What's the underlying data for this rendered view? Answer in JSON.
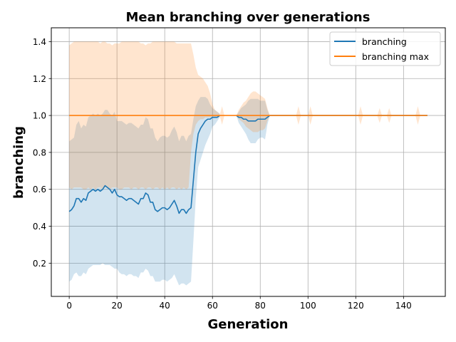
{
  "chart_data": {
    "type": "line",
    "title": "Mean branching over generations",
    "xlabel": "Generation",
    "ylabel": "branching",
    "xlim": [
      -7.5,
      157.5
    ],
    "ylim": [
      0.02,
      1.475
    ],
    "xticks": [
      0,
      20,
      40,
      60,
      80,
      100,
      120,
      140
    ],
    "yticks": [
      0.2,
      0.4,
      0.6,
      0.8,
      1.0,
      1.2,
      1.4
    ],
    "xtick_labels": [
      "0",
      "20",
      "40",
      "60",
      "80",
      "100",
      "120",
      "140"
    ],
    "ytick_labels": [
      "0.2",
      "0.4",
      "0.6",
      "0.8",
      "1.0",
      "1.2",
      "1.4"
    ],
    "grid": true,
    "legend_position": "top-right",
    "series": [
      {
        "name": "branching",
        "color": "#1f77b4",
        "segments": [
          {
            "x": [
              0,
              1,
              2,
              3,
              4,
              5,
              6,
              7,
              8,
              9,
              10,
              11,
              12,
              13,
              14,
              15,
              16,
              17,
              18,
              19,
              20,
              21,
              22,
              23,
              24,
              25,
              26,
              27,
              28,
              29,
              30,
              31,
              32,
              33,
              34,
              35,
              36,
              37,
              38,
              39,
              40,
              41,
              42,
              43,
              44,
              45,
              46,
              47,
              48,
              49,
              50,
              51,
              52,
              53,
              54,
              55,
              56,
              57,
              58,
              59,
              60,
              61,
              62,
              63
            ],
            "y": [
              0.48,
              0.49,
              0.51,
              0.55,
              0.55,
              0.53,
              0.55,
              0.54,
              0.58,
              0.59,
              0.6,
              0.59,
              0.6,
              0.59,
              0.6,
              0.62,
              0.61,
              0.6,
              0.58,
              0.6,
              0.57,
              0.56,
              0.56,
              0.55,
              0.54,
              0.55,
              0.55,
              0.54,
              0.53,
              0.52,
              0.55,
              0.55,
              0.58,
              0.57,
              0.53,
              0.53,
              0.49,
              0.48,
              0.49,
              0.5,
              0.5,
              0.49,
              0.5,
              0.52,
              0.54,
              0.51,
              0.47,
              0.49,
              0.49,
              0.47,
              0.49,
              0.5,
              0.65,
              0.8,
              0.9,
              0.93,
              0.95,
              0.97,
              0.98,
              0.98,
              0.99,
              0.99,
              0.99,
              1.0
            ],
            "lower": [
              0.1,
              0.11,
              0.14,
              0.15,
              0.13,
              0.13,
              0.15,
              0.14,
              0.17,
              0.18,
              0.19,
              0.19,
              0.19,
              0.19,
              0.2,
              0.19,
              0.19,
              0.19,
              0.18,
              0.17,
              0.17,
              0.15,
              0.14,
              0.14,
              0.13,
              0.14,
              0.14,
              0.13,
              0.13,
              0.12,
              0.15,
              0.15,
              0.17,
              0.16,
              0.13,
              0.13,
              0.1,
              0.1,
              0.1,
              0.11,
              0.11,
              0.1,
              0.11,
              0.12,
              0.14,
              0.11,
              0.08,
              0.09,
              0.09,
              0.08,
              0.09,
              0.1,
              0.32,
              0.55,
              0.72,
              0.76,
              0.8,
              0.84,
              0.87,
              0.9,
              0.94,
              0.95,
              0.97,
              0.99
            ],
            "upper": [
              0.86,
              0.87,
              0.88,
              0.95,
              0.97,
              0.93,
              0.95,
              0.94,
              0.99,
              1.0,
              1.01,
              1.0,
              1.01,
              1.0,
              1.01,
              1.03,
              1.03,
              1.01,
              1.0,
              1.02,
              0.97,
              0.97,
              0.97,
              0.96,
              0.95,
              0.96,
              0.96,
              0.95,
              0.94,
              0.93,
              0.95,
              0.95,
              0.99,
              0.98,
              0.93,
              0.93,
              0.88,
              0.86,
              0.88,
              0.89,
              0.89,
              0.88,
              0.89,
              0.92,
              0.94,
              0.91,
              0.86,
              0.89,
              0.89,
              0.86,
              0.89,
              0.9,
              0.98,
              1.05,
              1.08,
              1.1,
              1.1,
              1.1,
              1.09,
              1.06,
              1.04,
              1.03,
              1.02,
              1.01
            ]
          },
          {
            "x": [
              70,
              71,
              72,
              73,
              74,
              75,
              76,
              77,
              78,
              79,
              80,
              81,
              82,
              83,
              84
            ],
            "y": [
              1.0,
              0.99,
              0.99,
              0.98,
              0.98,
              0.97,
              0.97,
              0.97,
              0.97,
              0.98,
              0.98,
              0.98,
              0.98,
              0.99,
              1.0
            ],
            "lower": [
              1.0,
              0.96,
              0.94,
              0.92,
              0.9,
              0.87,
              0.85,
              0.85,
              0.85,
              0.87,
              0.88,
              0.88,
              0.87,
              0.95,
              1.0
            ],
            "upper": [
              1.0,
              1.02,
              1.04,
              1.05,
              1.06,
              1.08,
              1.09,
              1.09,
              1.09,
              1.09,
              1.08,
              1.08,
              1.08,
              1.03,
              1.0
            ]
          },
          {
            "x": [
              84,
              96,
              101,
              122,
              126,
              130,
              134,
              146,
              150
            ],
            "y": [
              1.0,
              1.0,
              1.0,
              1.0,
              1.0,
              1.0,
              1.0,
              1.0,
              1.0
            ],
            "lower": [
              1.0,
              1.0,
              1.0,
              1.0,
              1.0,
              1.0,
              1.0,
              1.0,
              1.0
            ],
            "upper": [
              1.0,
              1.0,
              1.0,
              1.0,
              1.0,
              1.0,
              1.0,
              1.0,
              1.0
            ]
          }
        ]
      },
      {
        "name": "branching max",
        "color": "#ff7f0e",
        "segments": [
          {
            "x": [
              0,
              1,
              2,
              3,
              4,
              5,
              6,
              7,
              8,
              9,
              10,
              11,
              12,
              13,
              14,
              15,
              16,
              17,
              18,
              19,
              20,
              21,
              22,
              23,
              24,
              25,
              26,
              27,
              28,
              29,
              30,
              31,
              32,
              33,
              34,
              35,
              36,
              37,
              38,
              39,
              40,
              41,
              42,
              43,
              44,
              45,
              46,
              47,
              48,
              49,
              50,
              51,
              52,
              53,
              54,
              55,
              56,
              57,
              58,
              59,
              60,
              61,
              62,
              63
            ],
            "y": [
              1,
              1,
              1,
              1,
              1,
              1,
              1,
              1,
              1,
              1,
              1,
              1,
              1,
              1,
              1,
              1,
              1,
              1,
              1,
              1,
              1,
              1,
              1,
              1,
              1,
              1,
              1,
              1,
              1,
              1,
              1,
              1,
              1,
              1,
              1,
              1,
              1,
              1,
              1,
              1,
              1,
              1,
              1,
              1,
              1,
              1,
              1,
              1,
              1,
              1,
              1,
              1,
              1,
              1,
              1,
              1,
              1,
              1,
              1,
              1,
              1,
              1,
              1,
              1
            ],
            "lower": [
              0.61,
              0.6,
              0.61,
              0.61,
              0.61,
              0.61,
              0.6,
              0.6,
              0.61,
              0.6,
              0.61,
              0.6,
              0.61,
              0.61,
              0.6,
              0.61,
              0.61,
              0.6,
              0.61,
              0.61,
              0.61,
              0.6,
              0.6,
              0.61,
              0.61,
              0.61,
              0.6,
              0.61,
              0.61,
              0.6,
              0.61,
              0.61,
              0.6,
              0.61,
              0.61,
              0.6,
              0.61,
              0.61,
              0.6,
              0.61,
              0.6,
              0.61,
              0.6,
              0.61,
              0.61,
              0.6,
              0.61,
              0.6,
              0.61,
              0.6,
              0.61,
              0.8,
              0.9,
              0.95,
              0.97,
              0.98,
              0.98,
              0.99,
              0.99,
              0.99,
              0.99,
              0.99,
              0.99,
              0.99
            ],
            "upper": [
              1.38,
              1.39,
              1.4,
              1.4,
              1.4,
              1.4,
              1.4,
              1.4,
              1.4,
              1.4,
              1.4,
              1.4,
              1.4,
              1.39,
              1.4,
              1.4,
              1.39,
              1.39,
              1.38,
              1.39,
              1.39,
              1.39,
              1.4,
              1.4,
              1.4,
              1.4,
              1.4,
              1.4,
              1.4,
              1.4,
              1.39,
              1.39,
              1.38,
              1.39,
              1.39,
              1.4,
              1.4,
              1.4,
              1.4,
              1.4,
              1.4,
              1.4,
              1.4,
              1.4,
              1.4,
              1.39,
              1.39,
              1.39,
              1.39,
              1.39,
              1.39,
              1.39,
              1.33,
              1.26,
              1.22,
              1.21,
              1.2,
              1.18,
              1.16,
              1.12,
              1.06,
              1.03,
              1.02,
              1.01
            ]
          },
          {
            "x": [
              63,
              64,
              65,
              66,
              67,
              68,
              69,
              70,
              71,
              72,
              73,
              74,
              75,
              76,
              77,
              78,
              79,
              80,
              81,
              82,
              83,
              84,
              95,
              96,
              97,
              100,
              101,
              102,
              121,
              122,
              123,
              129,
              130,
              131,
              133,
              134,
              135,
              145,
              146,
              147,
              150
            ],
            "y": [
              1,
              1,
              1,
              1,
              1,
              1,
              1,
              1,
              1,
              1,
              1,
              1,
              1,
              1,
              1,
              1,
              1,
              1,
              1,
              1,
              1,
              1,
              1,
              1,
              1,
              1,
              1,
              1,
              1,
              1,
              1,
              1,
              1,
              1,
              1,
              1,
              1,
              1,
              1,
              1,
              1
            ],
            "lower": [
              1.0,
              0.95,
              1.0,
              1.0,
              1.0,
              1.0,
              1.0,
              1.0,
              0.98,
              0.97,
              0.96,
              0.94,
              0.93,
              0.92,
              0.91,
              0.91,
              0.91,
              0.92,
              0.92,
              0.93,
              0.97,
              1.0,
              1.0,
              0.95,
              1.0,
              1.0,
              0.95,
              1.0,
              1.0,
              0.95,
              1.0,
              1.0,
              0.96,
              1.0,
              1.0,
              0.96,
              1.0,
              1.0,
              0.95,
              1.0,
              1.0
            ],
            "upper": [
              1.0,
              1.05,
              1.0,
              1.0,
              1.0,
              1.0,
              1.0,
              1.0,
              1.03,
              1.05,
              1.07,
              1.08,
              1.1,
              1.12,
              1.13,
              1.13,
              1.12,
              1.11,
              1.1,
              1.09,
              1.04,
              1.0,
              1.0,
              1.05,
              1.0,
              1.0,
              1.05,
              1.0,
              1.0,
              1.05,
              1.0,
              1.0,
              1.04,
              1.0,
              1.0,
              1.04,
              1.0,
              1.0,
              1.05,
              1.0,
              1.0
            ]
          }
        ]
      }
    ]
  }
}
